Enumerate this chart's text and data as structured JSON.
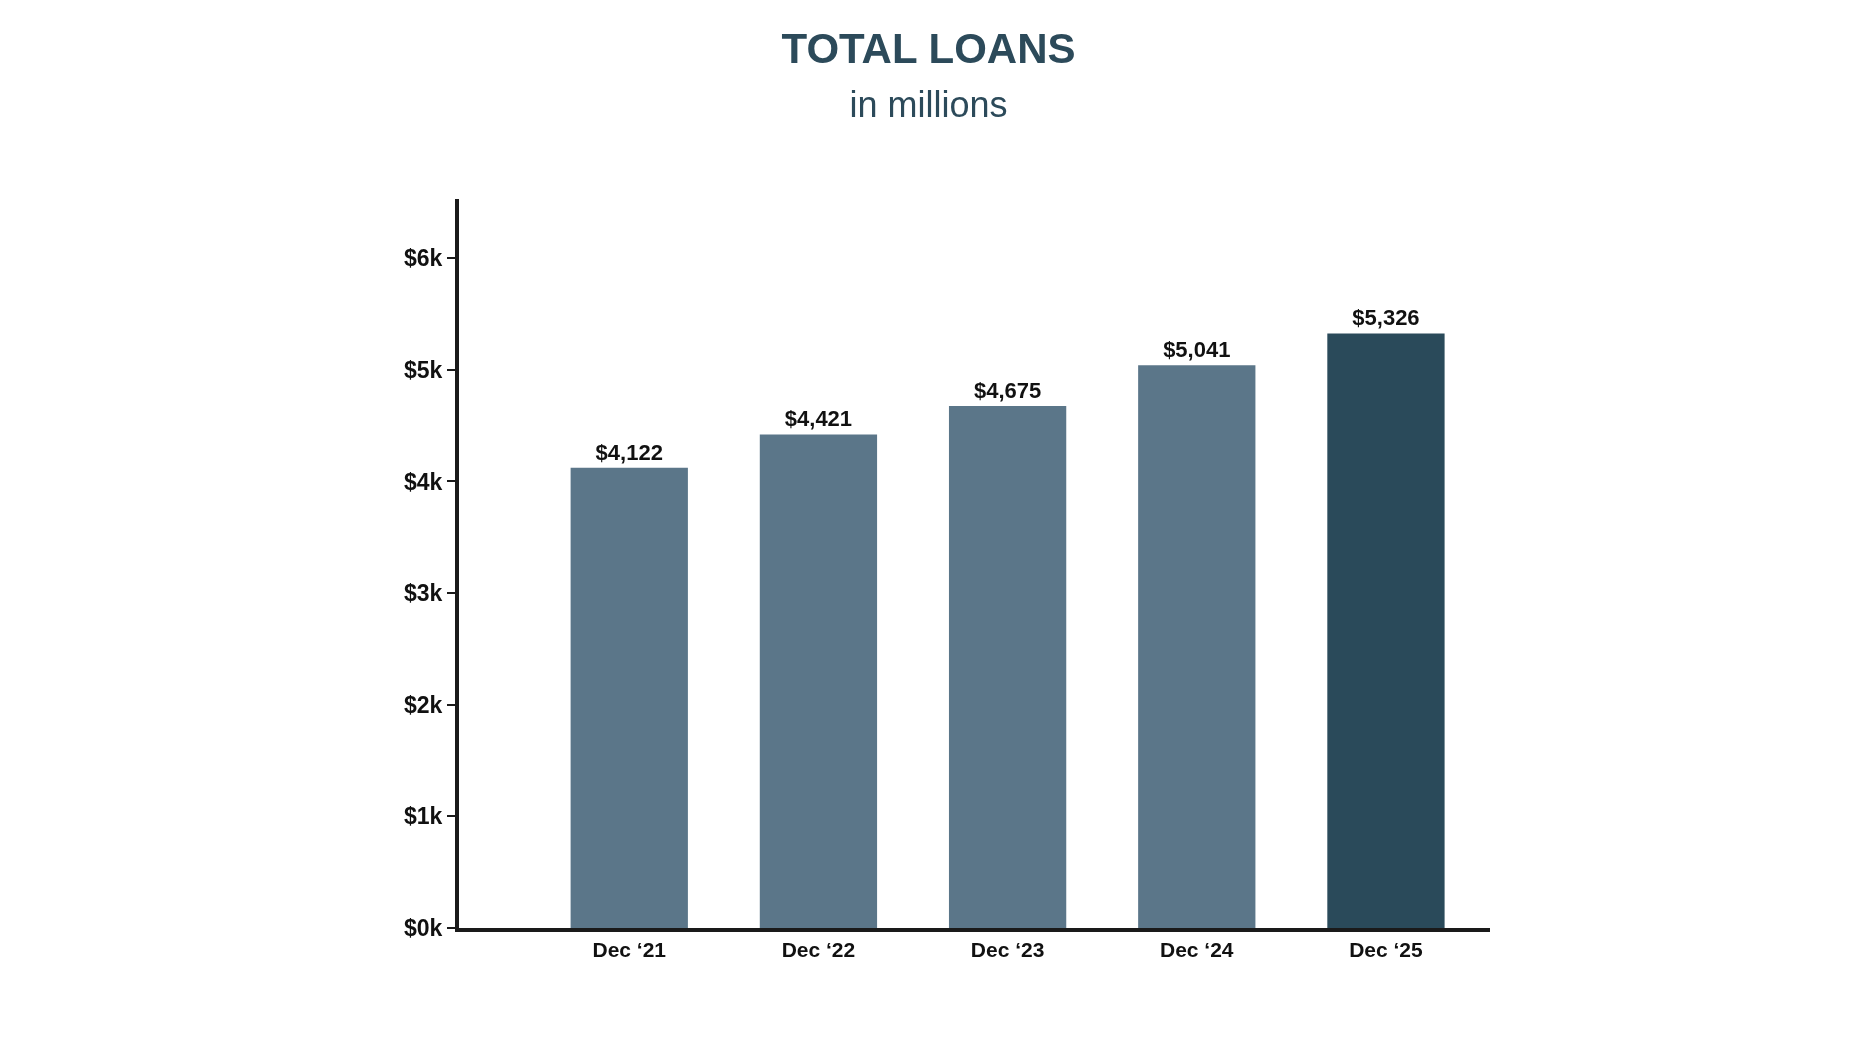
{
  "chart_data": {
    "type": "bar",
    "title": "TOTAL LOANS",
    "subtitle": "in millions",
    "categories": [
      "Dec ‘21",
      "Dec ‘22",
      "Dec ‘23",
      "Dec ‘24",
      "Dec ‘25"
    ],
    "values": [
      4122,
      4421,
      4675,
      5041,
      5326
    ],
    "colors": [
      "#5b7689",
      "#5b7689",
      "#5b7689",
      "#5b7689",
      "#2a4a5a"
    ],
    "value_labels": [
      "$4,122",
      "$4,421",
      "$4,675",
      "$5,041",
      "$5,326"
    ],
    "ylim": [
      0,
      6530
    ],
    "yticks": [
      {
        "value": 0,
        "label": "$0k"
      },
      {
        "value": 1000,
        "label": "$1k"
      },
      {
        "value": 2000,
        "label": "$2k"
      },
      {
        "value": 3000,
        "label": "$3k"
      },
      {
        "value": 4000,
        "label": "$4k"
      },
      {
        "value": 5000,
        "label": "$5k"
      },
      {
        "value": 6000,
        "label": "$6k"
      }
    ],
    "legend": false
  }
}
